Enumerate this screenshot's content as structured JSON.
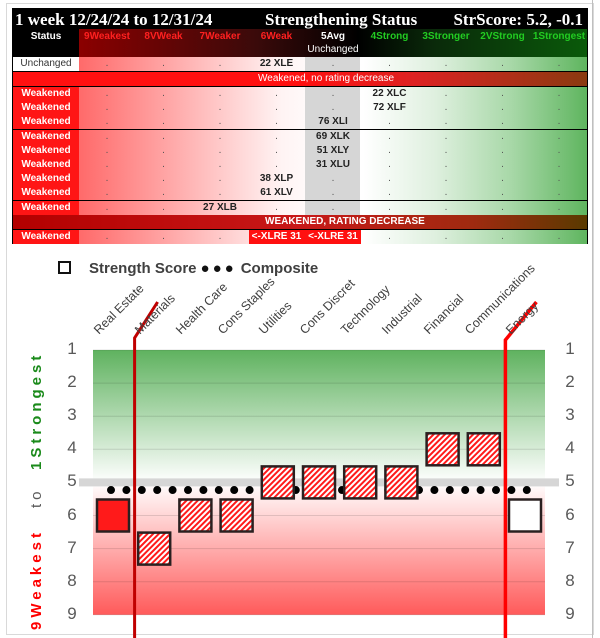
{
  "table": {
    "title_left": "1 week 12/24/24 to 12/31/24",
    "title_center": "Strengthening Status",
    "title_right": "StrScore: 5.2, -0.1",
    "headers": [
      {
        "label": "Status",
        "color": "#ffffff"
      },
      {
        "label": "9Weakest",
        "color": "#ff2020"
      },
      {
        "label": "8VWeak",
        "color": "#ff2020"
      },
      {
        "label": "7Weaker",
        "color": "#ff2020"
      },
      {
        "label": "6Weak",
        "color": "#ff2020"
      },
      {
        "label": "5Avg",
        "label2": "Unchanged",
        "color": "#ffffff"
      },
      {
        "label": "4Strong",
        "color": "#22cc22"
      },
      {
        "label": "3Stronger",
        "color": "#22cc22"
      },
      {
        "label": "2VStrong",
        "color": "#22cc22"
      },
      {
        "label": "1Strongest",
        "color": "#22cc22"
      }
    ],
    "unchanged_row": {
      "status": "Unchanged",
      "cells": [
        ".",
        ".",
        ".",
        "22 XLE",
        ".",
        ".",
        ".",
        ".",
        "."
      ]
    },
    "banner1": "Weakened, no rating decrease",
    "weakened_rows": [
      {
        "status": "Weakened",
        "cells": [
          ".",
          ".",
          ".",
          ".",
          ".",
          "22 XLC",
          ".",
          ".",
          "."
        ]
      },
      {
        "status": "Weakened",
        "cells": [
          ".",
          ".",
          ".",
          ".",
          ".",
          "72 XLF",
          ".",
          ".",
          "."
        ]
      },
      {
        "status": "Weakened",
        "cells": [
          ".",
          ".",
          ".",
          ".",
          "76 XLI",
          ".",
          ".",
          ".",
          "."
        ]
      },
      {
        "status": "Weakened",
        "cells": [
          ".",
          ".",
          ".",
          ".",
          "69 XLK",
          ".",
          ".",
          ".",
          "."
        ]
      },
      {
        "status": "Weakened",
        "cells": [
          ".",
          ".",
          ".",
          ".",
          "51 XLY",
          ".",
          ".",
          ".",
          "."
        ]
      },
      {
        "status": "Weakened",
        "cells": [
          ".",
          ".",
          ".",
          ".",
          "31 XLU",
          ".",
          ".",
          ".",
          "."
        ]
      },
      {
        "status": "Weakened",
        "cells": [
          ".",
          ".",
          ".",
          "38 XLP",
          ".",
          ".",
          ".",
          ".",
          "."
        ]
      },
      {
        "status": "Weakened",
        "cells": [
          ".",
          ".",
          ".",
          "61 XLV",
          ".",
          ".",
          ".",
          ".",
          "."
        ]
      },
      {
        "status": "Weakened",
        "cells": [
          ".",
          ".",
          "27 XLB",
          ".",
          ".",
          ".",
          ".",
          ".",
          "."
        ]
      }
    ],
    "banner2": "WEAKENED, RATING DECREASE",
    "decrease_row": {
      "status": "Weakened",
      "cells": [
        ".",
        ".",
        ".",
        "<-XLRE 31",
        "<-XLRE 31",
        ".",
        ".",
        ".",
        "."
      ]
    }
  },
  "chart_data": {
    "type": "scatter",
    "title": "",
    "legend": [
      {
        "name": "Strength Score",
        "marker": "square"
      },
      {
        "name": "Composite",
        "marker": "dotted-line"
      }
    ],
    "categories": [
      "Real Estate",
      "Materials",
      "Health Care",
      "Cons Staples",
      "Utilities",
      "Cons Discret",
      "Technology",
      "Industrial",
      "Financial",
      "Communications",
      "Energy"
    ],
    "series": [
      {
        "name": "Strength Score",
        "values": [
          6,
          7,
          6,
          6,
          5,
          5,
          5,
          5,
          4,
          4,
          6
        ],
        "styles": [
          "solid-red",
          "hatched",
          "hatched",
          "hatched",
          "hatched",
          "hatched",
          "hatched",
          "hatched",
          "hatched",
          "hatched",
          "empty"
        ]
      },
      {
        "name": "Composite",
        "values": [
          5.2,
          5.2,
          5.2,
          5.2,
          5.2,
          5.2,
          5.2,
          5.2,
          5.2,
          5.2,
          5.2
        ]
      }
    ],
    "average_line": 5,
    "ylim": [
      9,
      1
    ],
    "yticks": [
      1,
      2,
      3,
      4,
      5,
      6,
      7,
      8,
      9
    ],
    "ylabel_top": "1Strongest",
    "ylabel_mid": "to",
    "ylabel_bottom": "9Weakest",
    "xlabel": "",
    "grid": true,
    "markers": [
      {
        "type": "vertical-line",
        "after_category": "Real Estate",
        "color": "#c00000"
      },
      {
        "type": "vertical-line",
        "after_category": "Communications",
        "color": "#ff0000"
      }
    ]
  }
}
